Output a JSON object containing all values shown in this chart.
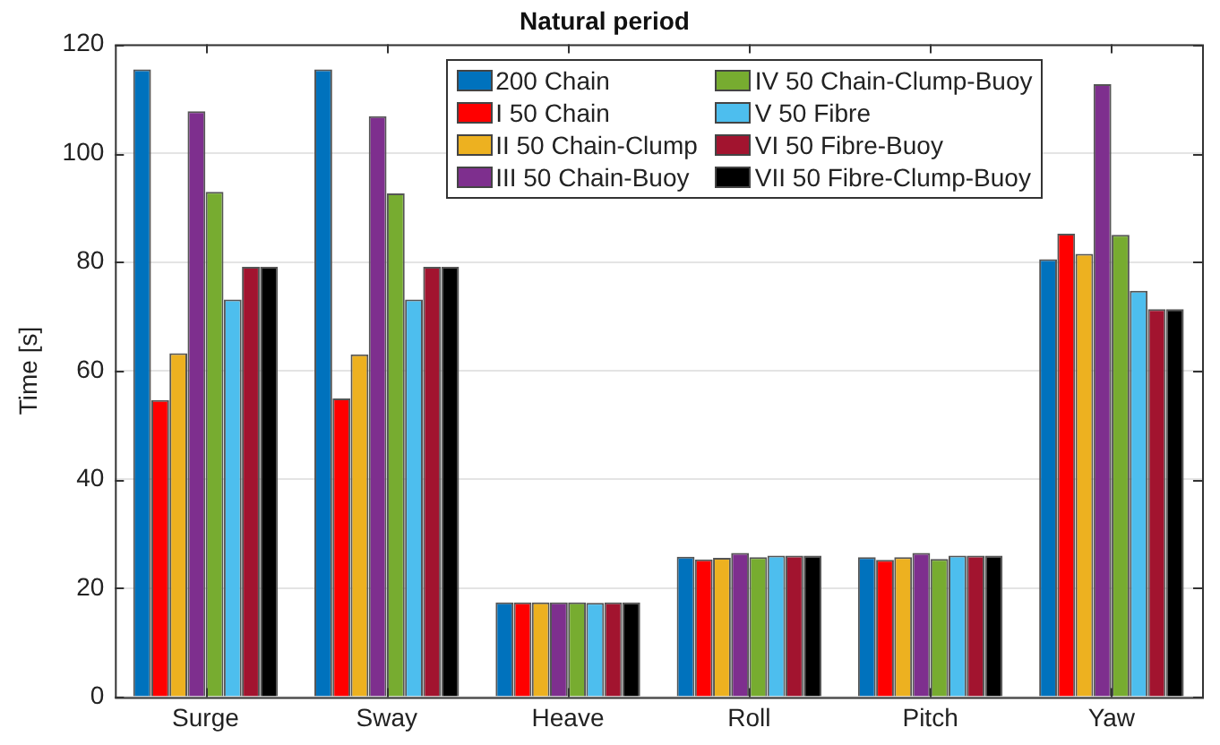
{
  "chart_data": {
    "type": "bar",
    "title": "Natural period",
    "ylabel": "Time [s]",
    "categories": [
      "Surge",
      "Sway",
      "Heave",
      "Roll",
      "Pitch",
      "Yaw"
    ],
    "series": [
      {
        "name": "200 Chain",
        "color": "#0072bd",
        "values": [
          115.4,
          115.4,
          17.4,
          25.8,
          25.7,
          80.5
        ]
      },
      {
        "name": "I 50 Chain",
        "color": "#ff0000",
        "values": [
          54.6,
          54.9,
          17.4,
          25.3,
          25.2,
          85.2
        ]
      },
      {
        "name": "II 50 Chain-Clump",
        "color": "#edb120",
        "values": [
          63.2,
          63,
          17.4,
          25.6,
          25.7,
          81.5
        ]
      },
      {
        "name": "III 50 Chain-Buoy",
        "color": "#7e2f8e",
        "values": [
          107.7,
          106.8,
          17.4,
          26.5,
          26.5,
          112.7
        ]
      },
      {
        "name": "IV 50 Chain-Clump-Buoy",
        "color": "#77ac30",
        "values": [
          92.9,
          92.6,
          17.4,
          25.7,
          25.4,
          85
        ]
      },
      {
        "name": "V 50 Fibre",
        "color": "#4dbeee",
        "values": [
          73.1,
          73.1,
          17.3,
          26,
          26,
          74.7
        ]
      },
      {
        "name": "VI 50 Fibre-Buoy",
        "color": "#a2142f",
        "values": [
          79.1,
          79.1,
          17.4,
          26,
          26,
          71.3
        ]
      },
      {
        "name": "VII 50 Fibre-Clump-Buoy",
        "color": "#000000",
        "values": [
          79.1,
          79.1,
          17.4,
          26,
          26,
          71.3
        ]
      }
    ],
    "ylim": [
      0,
      120
    ],
    "yticks": [
      0,
      20,
      40,
      60,
      80,
      100,
      120
    ],
    "grid": "y",
    "legend": "top"
  }
}
